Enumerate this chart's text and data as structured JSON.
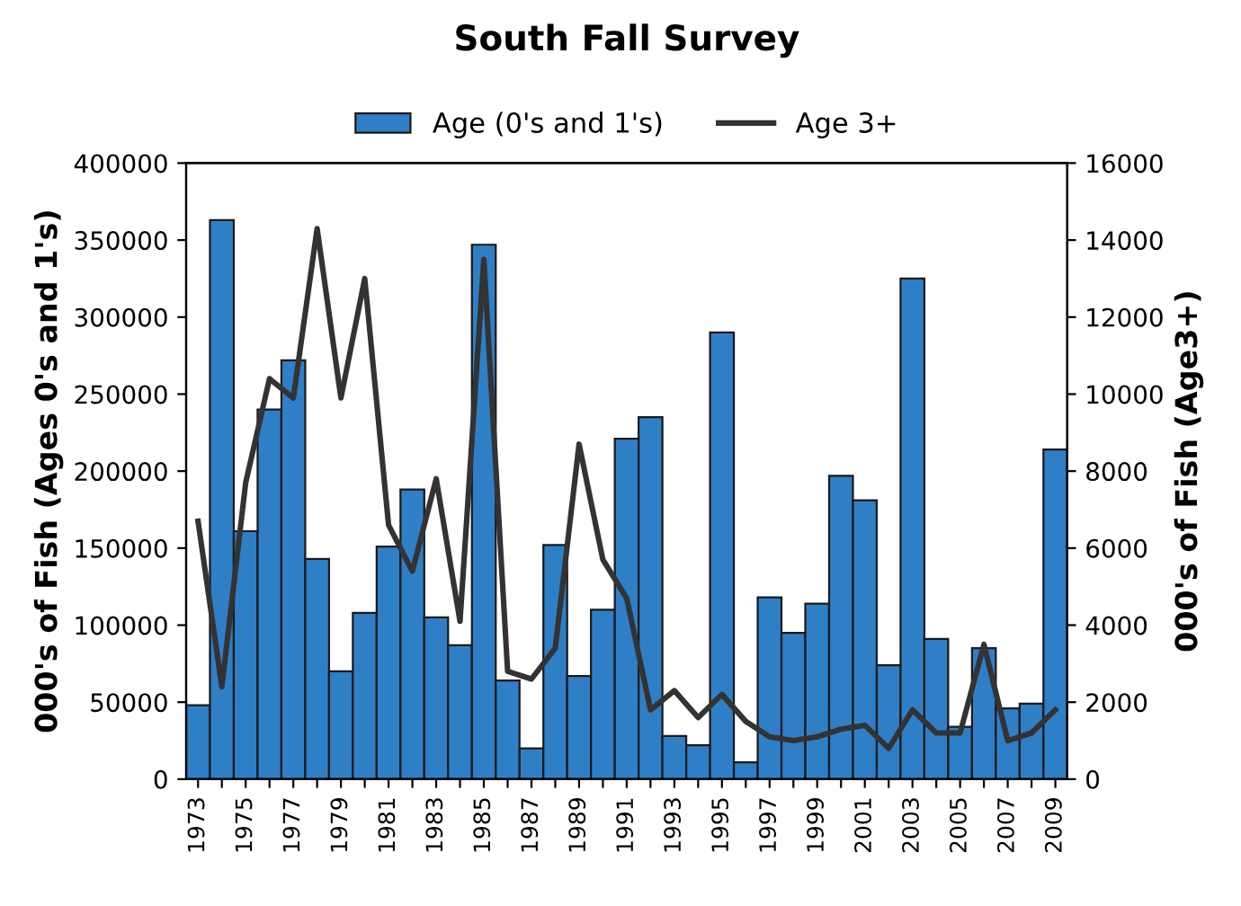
{
  "chart_data": {
    "type": "bar",
    "title": "South Fall Survey",
    "ylabel": "000's of Fish (Ages 0's and 1's)",
    "y2label": "000's of Fish (Age3+)",
    "categories": [
      "1973",
      null,
      "1975",
      null,
      "1977",
      null,
      "1979",
      null,
      "1981",
      null,
      "1983",
      null,
      "1985",
      null,
      "1987",
      null,
      "1989",
      null,
      "1991",
      null,
      "1993",
      null,
      "1995",
      null,
      "1997",
      null,
      "1999",
      null,
      "2001",
      null,
      "2003",
      null,
      "2005",
      null,
      "2007",
      null,
      "2009"
    ],
    "series": [
      {
        "name": "Age (0's and 1's)",
        "color": "#2f7fc7",
        "values": [
          48000,
          363000,
          161000,
          240000,
          272000,
          143000,
          70000,
          108000,
          151000,
          188000,
          105000,
          87000,
          347000,
          64000,
          20000,
          152000,
          67000,
          110000,
          221000,
          235000,
          28000,
          22000,
          290000,
          11000,
          118000,
          95000,
          114000,
          197000,
          181000,
          74000,
          325000,
          91000,
          34000,
          85000,
          46000,
          49000,
          214000
        ]
      },
      {
        "name": "Age 3+",
        "type": "line",
        "axis": "y2",
        "color": "#333333",
        "values": [
          6700,
          2400,
          7700,
          10400,
          9900,
          14300,
          9900,
          13000,
          6600,
          5400,
          7800,
          4100,
          13500,
          2800,
          2600,
          3400,
          8700,
          5700,
          4700,
          1800,
          2300,
          1600,
          2200,
          1500,
          1100,
          1000,
          1100,
          1300,
          1400,
          800,
          1800,
          1200,
          1200,
          3500,
          1000,
          1200,
          1800
        ]
      }
    ],
    "ylim": [
      0,
      400000
    ],
    "yticks": [
      0,
      50000,
      100000,
      150000,
      200000,
      250000,
      300000,
      350000,
      400000
    ],
    "y2lim": [
      0,
      16000
    ],
    "y2ticks": [
      0,
      2000,
      4000,
      6000,
      8000,
      10000,
      12000,
      14000,
      16000
    ],
    "legend": "top",
    "grid": false,
    "marker": "none",
    "line_style": "solid"
  }
}
